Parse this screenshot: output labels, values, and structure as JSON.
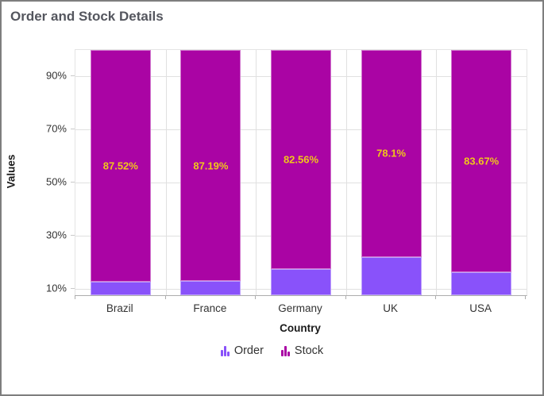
{
  "window": {
    "background": "#FFFFFF",
    "border_color": "#7E7E7E"
  },
  "chart_data": {
    "type": "bar",
    "subtype": "stacked-column-100",
    "title": "Order and Stock Details",
    "xlabel": "Country",
    "ylabel": "Values",
    "categories": [
      "Brazil",
      "France",
      "Germany",
      "UK",
      "USA"
    ],
    "series": [
      {
        "name": "Order",
        "color": "#8952FA",
        "values": [
          12.48,
          12.81,
          17.44,
          21.9,
          16.33
        ]
      },
      {
        "name": "Stock",
        "color": "#AA04A4",
        "values": [
          87.52,
          87.19,
          82.56,
          78.1,
          83.67
        ]
      }
    ],
    "data_labels": {
      "on_series": "Stock",
      "texts": [
        "87.52%",
        "87.19%",
        "82.56%",
        "78.1%",
        "83.67%"
      ],
      "color": "#F0C61B"
    },
    "yticks": [
      {
        "value": 10,
        "label": "10%"
      },
      {
        "value": 30,
        "label": "30%"
      },
      {
        "value": 50,
        "label": "50%"
      },
      {
        "value": 70,
        "label": "70%"
      },
      {
        "value": 90,
        "label": "90%"
      }
    ],
    "ylim": [
      7.5,
      100
    ],
    "grid": true,
    "legend_position": "bottom"
  },
  "legend": {
    "items": [
      {
        "label": "Order",
        "color": "#8952FA"
      },
      {
        "label": "Stock",
        "color": "#AA04A4"
      }
    ]
  }
}
